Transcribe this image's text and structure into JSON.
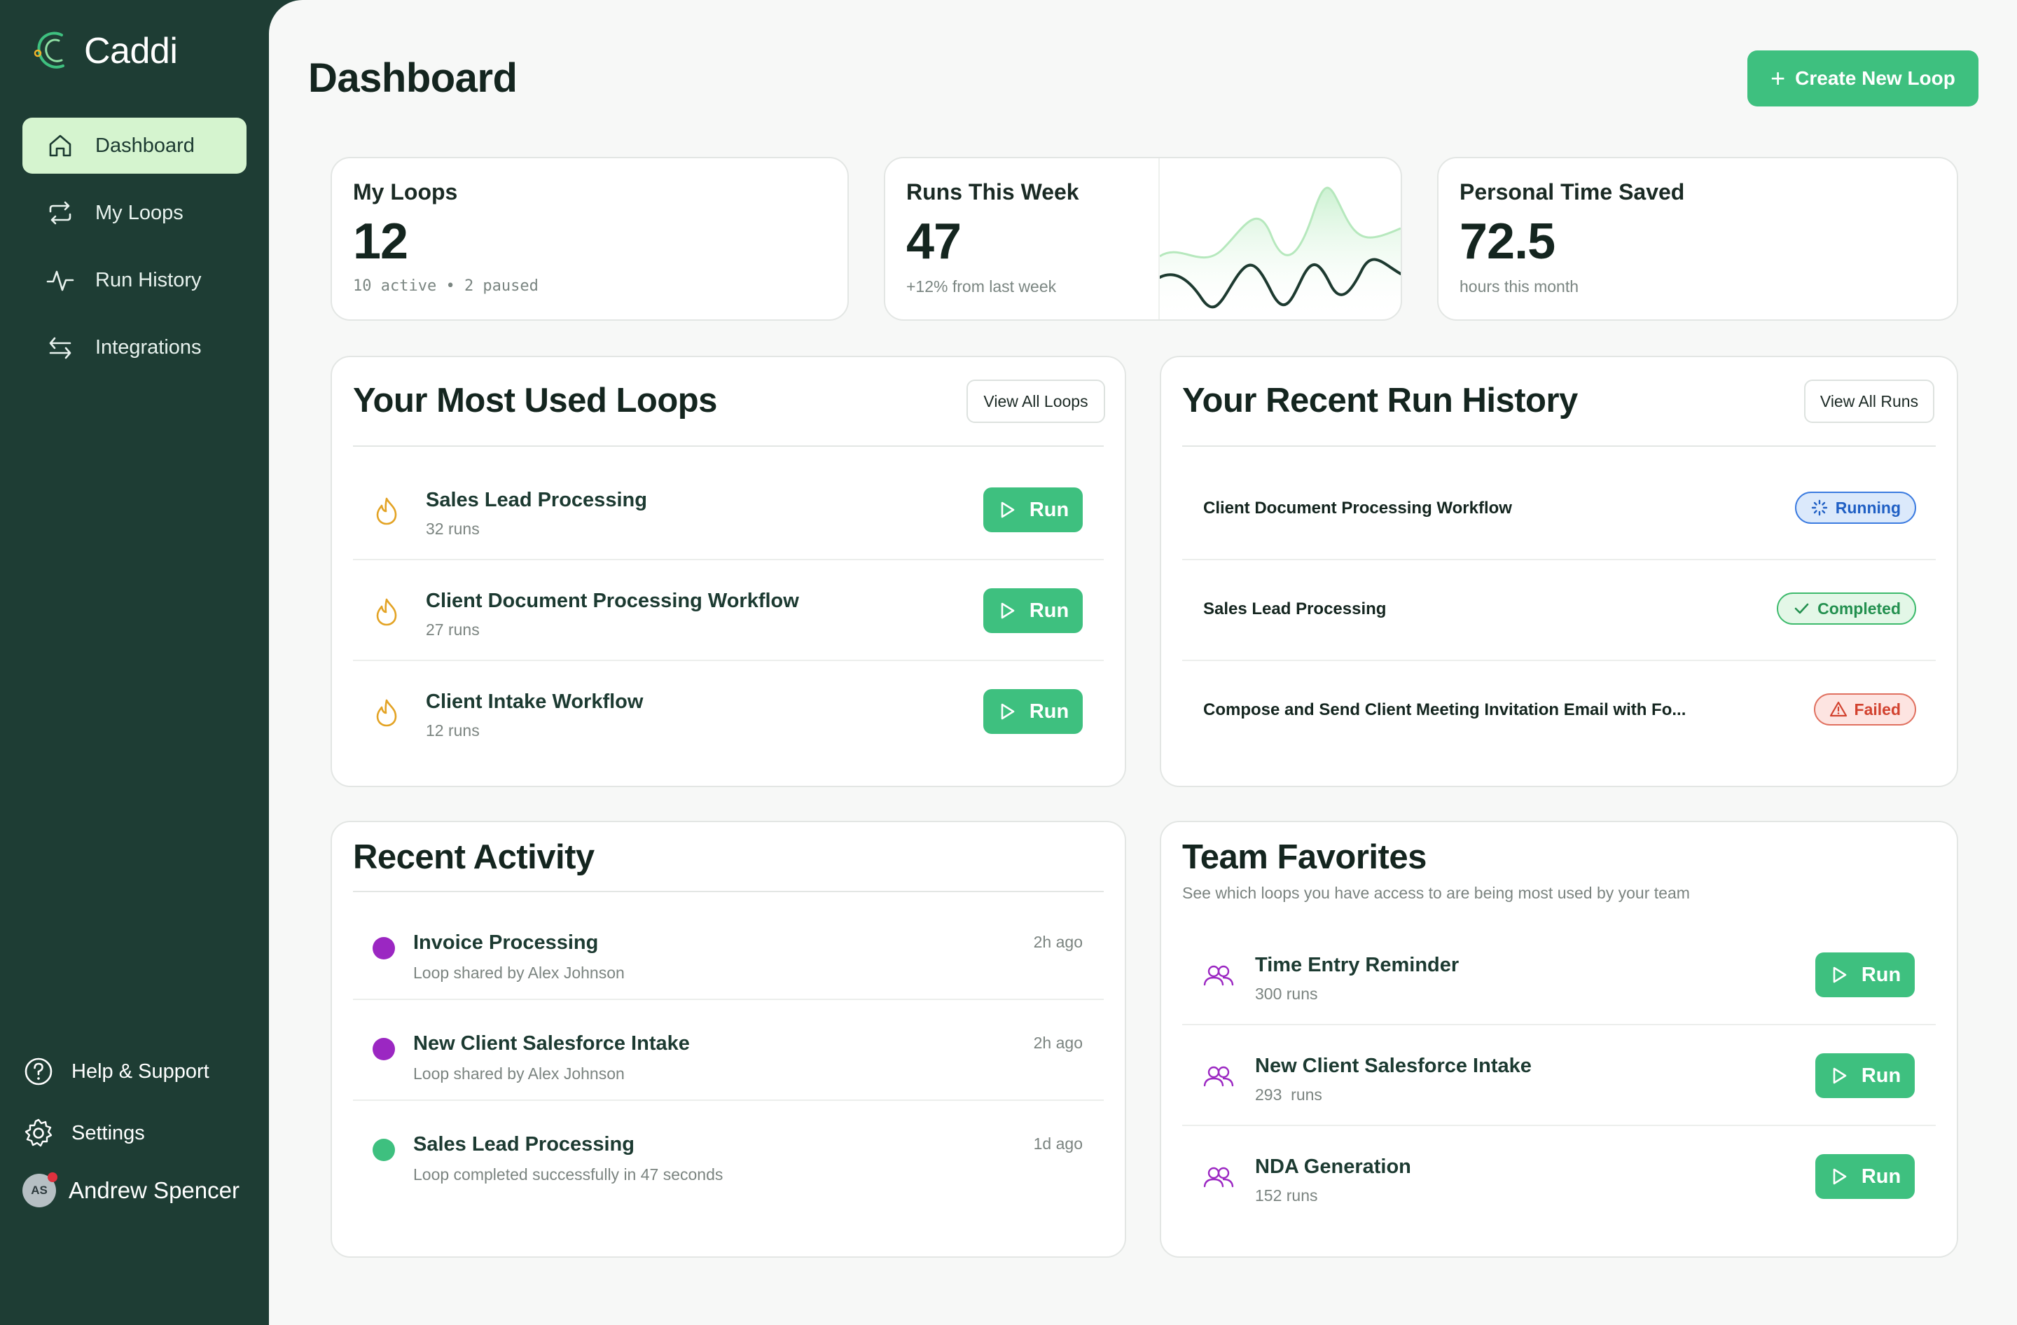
{
  "app": {
    "name": "Caddi"
  },
  "colors": {
    "brand": "#1e3d34",
    "accent": "#3ec07f",
    "nav_active": "#d5f4cf"
  },
  "sidebar": {
    "items": [
      {
        "label": "Dashboard",
        "icon": "home-icon",
        "active": true
      },
      {
        "label": "My Loops",
        "icon": "loop-icon",
        "active": false
      },
      {
        "label": "Run History",
        "icon": "activity-icon",
        "active": false
      },
      {
        "label": "Integrations",
        "icon": "arrows-swap-icon",
        "active": false
      }
    ],
    "help_label": "Help & Support",
    "settings_label": "Settings",
    "user": {
      "initials": "AS",
      "name": "Andrew Spencer"
    }
  },
  "header": {
    "title": "Dashboard",
    "create_label": "Create New Loop",
    "create_plus": "+"
  },
  "stats": {
    "loops": {
      "title": "My Loops",
      "value": "12",
      "sub": "10 active • 2 paused"
    },
    "runs": {
      "title": "Runs This Week",
      "value": "47",
      "sub": "+12% from last week"
    },
    "time": {
      "title": "Personal Time Saved",
      "value": "72.5",
      "sub": "hours this month"
    }
  },
  "most_used": {
    "title": "Your Most Used Loops",
    "view_all": "View All Loops",
    "run_label": "Run",
    "items": [
      {
        "name": "Sales Lead Processing",
        "runs": "32 runs"
      },
      {
        "name": "Client Document Processing Workflow",
        "runs": "27 runs"
      },
      {
        "name": "Client Intake Workflow",
        "runs": "12 runs"
      }
    ]
  },
  "history": {
    "title": "Your Recent Run History",
    "view_all": "View All Runs",
    "items": [
      {
        "name": "Client Document Processing Workflow",
        "status": "Running"
      },
      {
        "name": "Sales Lead Processing",
        "status": "Completed"
      },
      {
        "name": "Compose and Send Client Meeting Invitation Email with Fo...",
        "status": "Failed"
      }
    ]
  },
  "activity": {
    "title": "Recent Activity",
    "items": [
      {
        "name": "Invoice Processing",
        "sub": "Loop shared by Alex Johnson",
        "time": "2h ago",
        "color": "#9b27c2"
      },
      {
        "name": "New Client Salesforce Intake",
        "sub": "Loop shared by Alex Johnson",
        "time": "2h ago",
        "color": "#9b27c2"
      },
      {
        "name": "Sales Lead Processing",
        "sub": "Loop completed successfully in 47 seconds",
        "time": "1d ago",
        "color": "#3ec07f"
      }
    ]
  },
  "team": {
    "title": "Team Favorites",
    "subtitle": "See which loops you have access to are being most used by your team",
    "run_label": "Run",
    "items": [
      {
        "name": "Time Entry Reminder",
        "runs": "300 runs"
      },
      {
        "name": "New Client Salesforce Intake",
        "runs": "293  runs"
      },
      {
        "name": "NDA Generation",
        "runs": "152 runs"
      }
    ]
  }
}
